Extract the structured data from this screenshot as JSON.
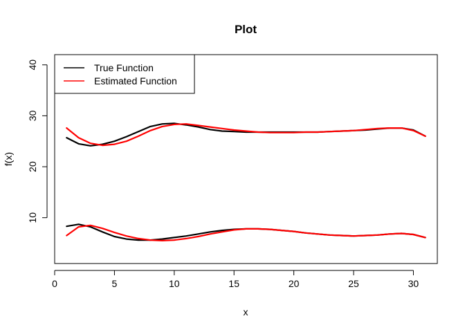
{
  "chart_data": {
    "type": "line",
    "title": "Plot",
    "xlabel": "x",
    "ylabel": "f(x)",
    "xlim": [
      0,
      32
    ],
    "ylim": [
      1,
      42
    ],
    "xticks": [
      0,
      5,
      10,
      15,
      20,
      25,
      30
    ],
    "yticks": [
      10,
      20,
      30,
      40
    ],
    "legend_position": "top-left",
    "x": [
      1,
      2,
      3,
      4,
      5,
      6,
      7,
      8,
      9,
      10,
      11,
      12,
      13,
      14,
      15,
      16,
      17,
      18,
      19,
      20,
      21,
      22,
      23,
      24,
      25,
      26,
      27,
      28,
      29,
      30,
      31
    ],
    "series": [
      {
        "name": "True Function",
        "color": "#000000",
        "lines": [
          [
            25.7,
            24.5,
            24.1,
            24.4,
            25.0,
            25.9,
            26.9,
            27.9,
            28.4,
            28.5,
            28.2,
            27.8,
            27.3,
            27.0,
            26.9,
            26.8,
            26.8,
            26.8,
            26.8,
            26.8,
            26.8,
            26.8,
            26.9,
            27.0,
            27.1,
            27.2,
            27.4,
            27.6,
            27.6,
            27.2,
            26.0
          ],
          [
            8.3,
            8.7,
            8.2,
            7.2,
            6.3,
            5.8,
            5.6,
            5.6,
            5.8,
            6.1,
            6.4,
            6.8,
            7.2,
            7.5,
            7.7,
            7.8,
            7.8,
            7.7,
            7.5,
            7.3,
            7.0,
            6.8,
            6.6,
            6.5,
            6.4,
            6.5,
            6.6,
            6.8,
            6.9,
            6.7,
            6.1
          ]
        ]
      },
      {
        "name": "Estimated Function",
        "color": "#ff0000",
        "lines": [
          [
            27.6,
            25.7,
            24.6,
            24.2,
            24.4,
            25.0,
            26.0,
            27.1,
            27.9,
            28.3,
            28.4,
            28.1,
            27.8,
            27.5,
            27.2,
            27.0,
            26.8,
            26.7,
            26.7,
            26.7,
            26.8,
            26.8,
            26.9,
            27.0,
            27.1,
            27.3,
            27.5,
            27.6,
            27.6,
            27.1,
            26.0
          ],
          [
            6.5,
            8.2,
            8.5,
            7.9,
            7.1,
            6.4,
            5.9,
            5.6,
            5.5,
            5.6,
            5.9,
            6.3,
            6.8,
            7.2,
            7.6,
            7.8,
            7.8,
            7.7,
            7.5,
            7.3,
            7.0,
            6.8,
            6.6,
            6.5,
            6.4,
            6.5,
            6.6,
            6.8,
            6.9,
            6.7,
            6.1
          ]
        ]
      }
    ]
  }
}
